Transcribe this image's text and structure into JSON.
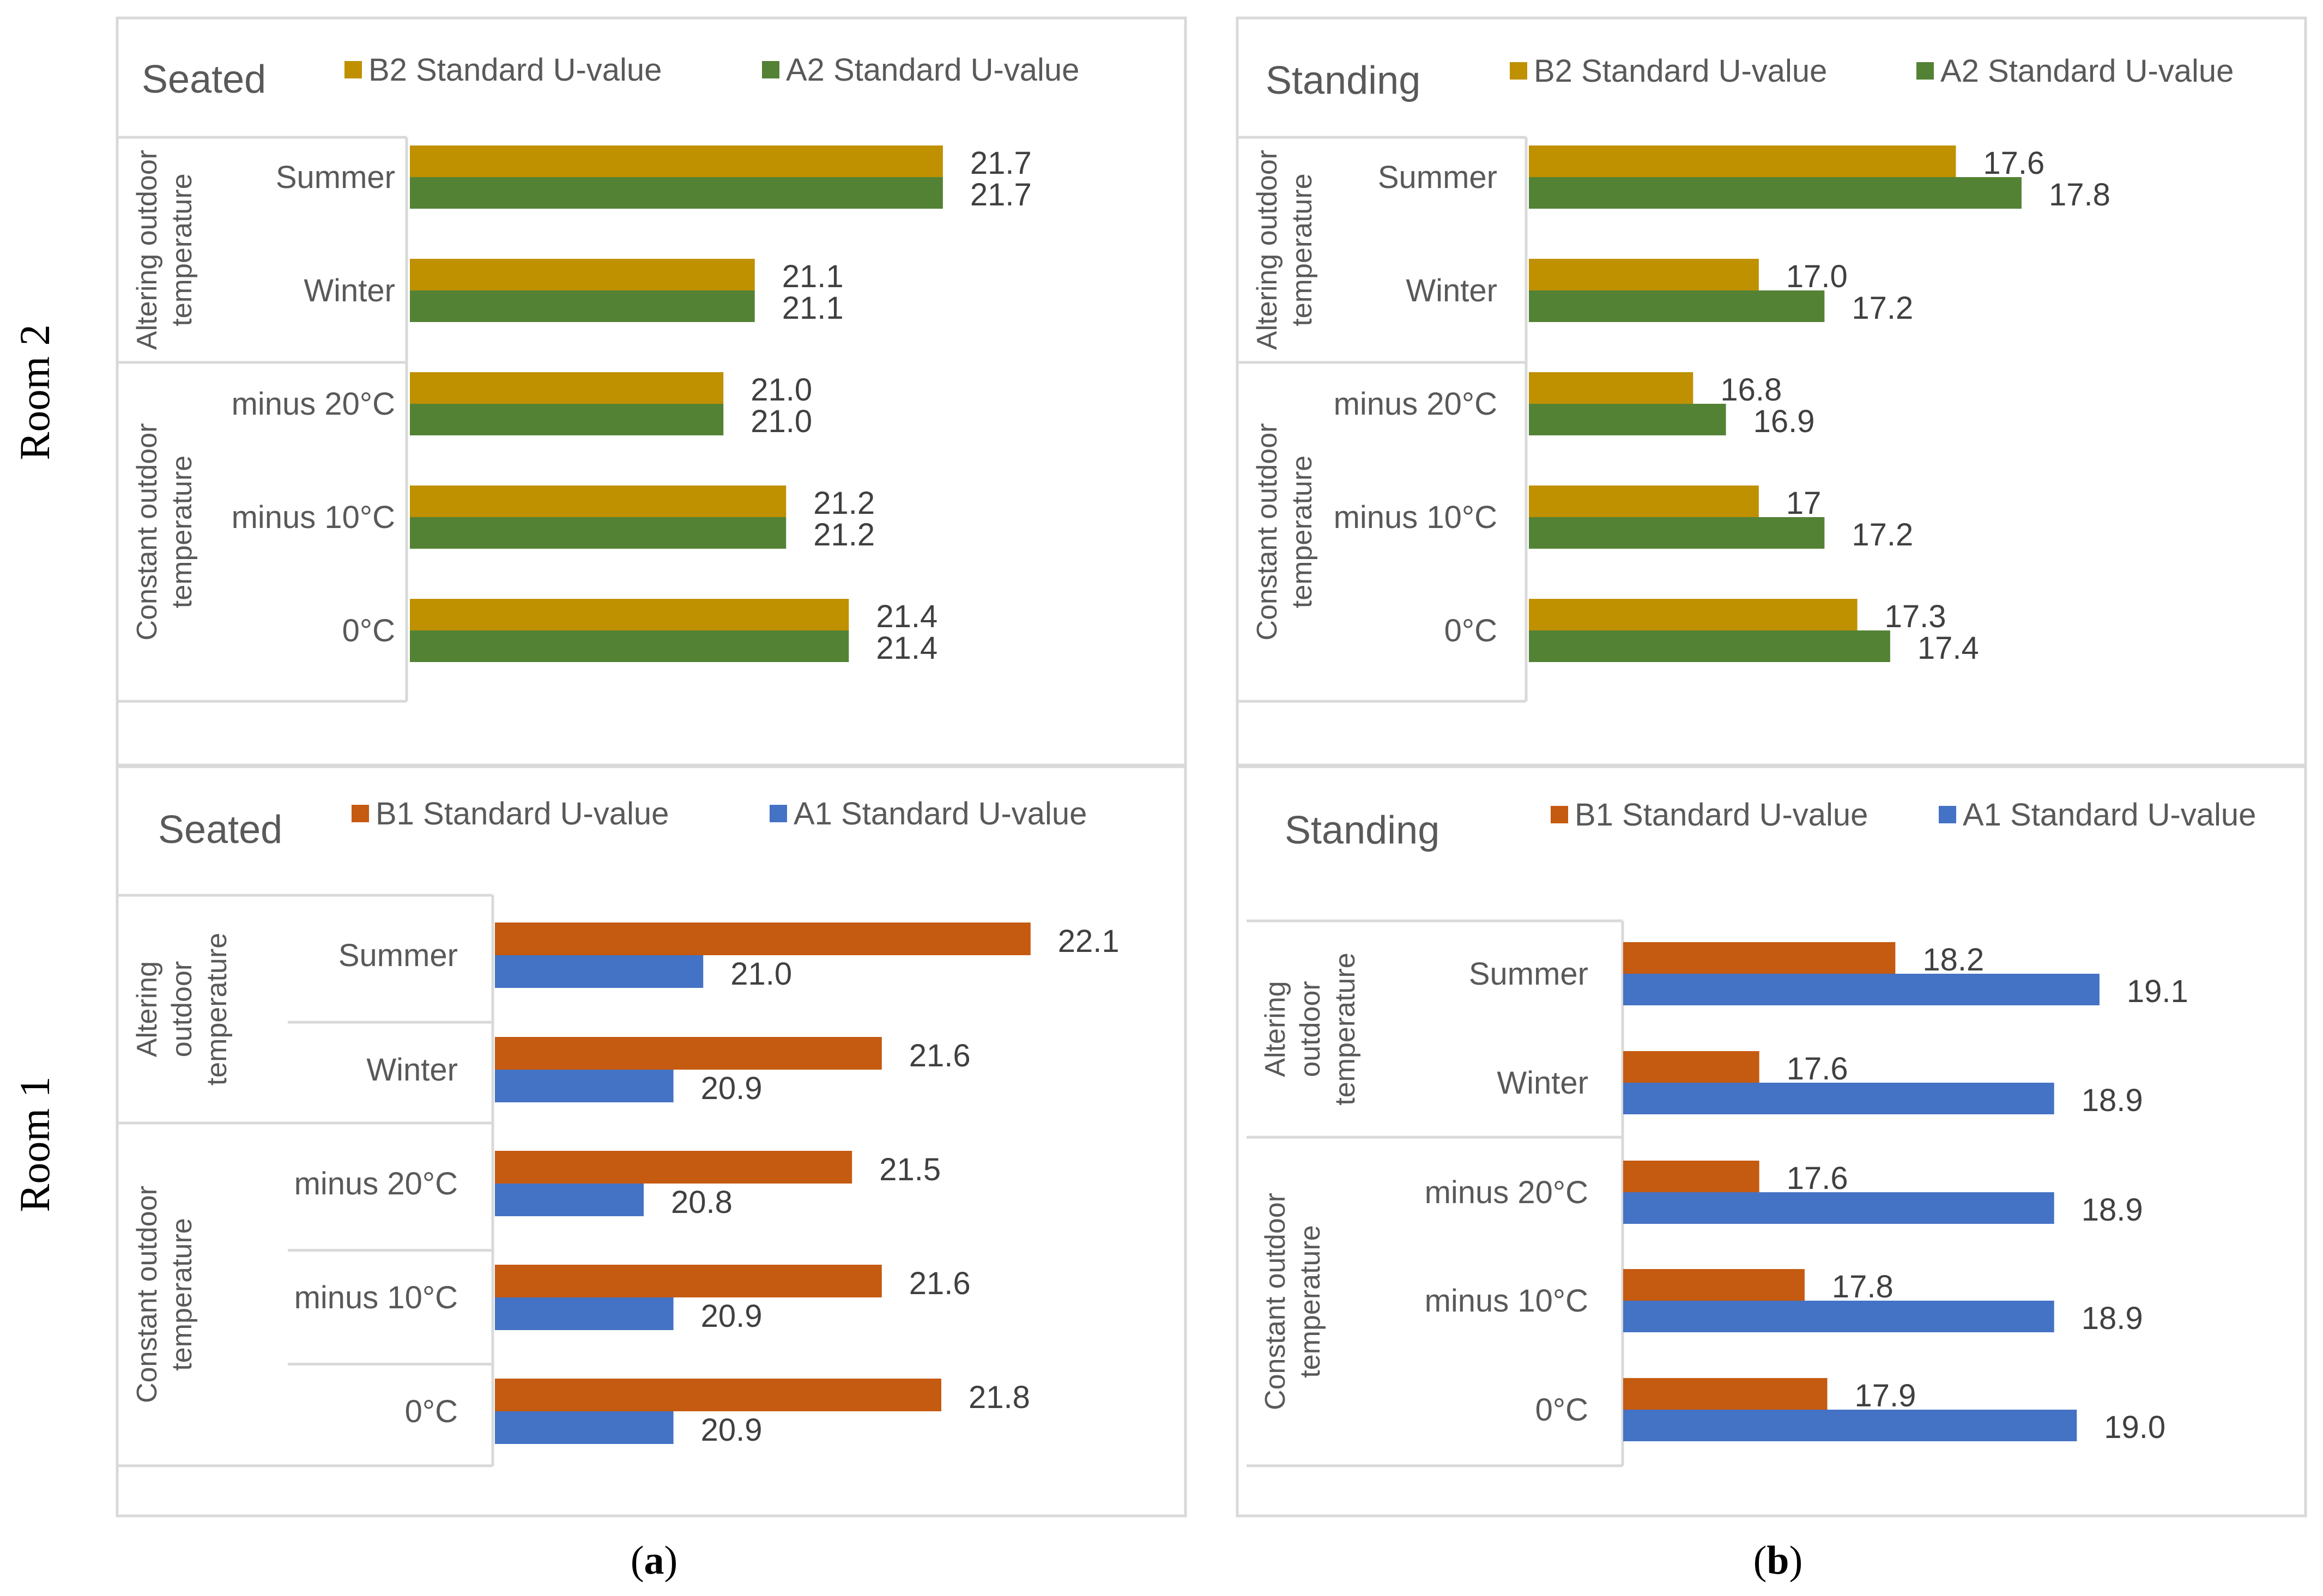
{
  "room_labels": [
    "Room 2",
    "Room 1"
  ],
  "panel_labels": [
    "(a)",
    "(b)"
  ],
  "panel_label_bold": [
    "a",
    "b"
  ],
  "chart_data": [
    {
      "type": "bar",
      "orientation": "horizontal",
      "room": "Room 2",
      "title": "Seated",
      "group_labels": [
        "Altering outdoor temperature",
        "Constant outdoor temperature"
      ],
      "group_label_lines": [
        [
          "Altering outdoor",
          "temperature"
        ],
        [
          "Constant outdoor",
          "temperature"
        ]
      ],
      "categories": [
        "Summer",
        "Winter",
        "minus 20°C",
        "minus 10°C",
        "0°C"
      ],
      "series": [
        {
          "name": "B2 Standard U-value",
          "color": "#bf9000",
          "values": [
            21.7,
            21.1,
            21.0,
            21.2,
            21.4
          ],
          "labels": [
            "21.7",
            "21.1",
            "21.0",
            "21.2",
            "21.4"
          ]
        },
        {
          "name": "A2 Standard U-value",
          "color": "#548235",
          "values": [
            21.7,
            21.1,
            21.0,
            21.2,
            21.4
          ],
          "labels": [
            "21.7",
            "21.1",
            "21.0",
            "21.2",
            "21.4"
          ]
        }
      ],
      "xlim": [
        20.0,
        22.1
      ],
      "grid": false,
      "legend": "top"
    },
    {
      "type": "bar",
      "orientation": "horizontal",
      "room": "Room 2",
      "title": "Standing",
      "group_labels": [
        "Altering outdoor temperature",
        "Constant outdoor temperature"
      ],
      "group_label_lines": [
        [
          "Altering outdoor",
          "temperature"
        ],
        [
          "Constant outdoor",
          "temperature"
        ]
      ],
      "categories": [
        "Summer",
        "Winter",
        "minus 20°C",
        "minus 10°C",
        "0°C"
      ],
      "series": [
        {
          "name": "B2 Standard U-value",
          "color": "#bf9000",
          "values": [
            17.6,
            17.0,
            16.8,
            17.0,
            17.3
          ],
          "labels": [
            "17.6",
            "17.0",
            "16.8",
            "17",
            "17.3"
          ]
        },
        {
          "name": "A2 Standard U-value",
          "color": "#548235",
          "values": [
            17.8,
            17.2,
            16.9,
            17.2,
            17.4
          ],
          "labels": [
            "17.8",
            "17.2",
            "16.9",
            "17.2",
            "17.4"
          ]
        }
      ],
      "xlim": [
        16.3,
        18.2
      ],
      "grid": false,
      "legend": "top"
    },
    {
      "type": "bar",
      "orientation": "horizontal",
      "room": "Room 1",
      "title": "Seated",
      "group_labels": [
        "Altering outdoor temperature",
        "Constant outdoor temperature"
      ],
      "group_label_lines": [
        [
          "Altering",
          "outdoor",
          "temperature"
        ],
        [
          "Constant outdoor",
          "temperature"
        ]
      ],
      "categories": [
        "Summer",
        "Winter",
        "minus 20°C",
        "minus 10°C",
        "0°C"
      ],
      "series": [
        {
          "name": "B1 Standard U-value",
          "color": "#c55a11",
          "values": [
            22.1,
            21.6,
            21.5,
            21.6,
            21.8
          ],
          "labels": [
            "22.1",
            "21.6",
            "21.5",
            "21.6",
            "21.8"
          ]
        },
        {
          "name": "A1 Standard U-value",
          "color": "#4472c4",
          "values": [
            21.0,
            20.9,
            20.8,
            20.9,
            20.9
          ],
          "labels": [
            "21.0",
            "20.9",
            "20.8",
            "20.9",
            "20.9"
          ]
        }
      ],
      "xlim": [
        20.3,
        22.3
      ],
      "grid": false,
      "legend": "top"
    },
    {
      "type": "bar",
      "orientation": "horizontal",
      "room": "Room 1",
      "title": "Standing",
      "group_labels": [
        "Altering outdoor temperature",
        "Constant outdoor temperature"
      ],
      "group_label_lines": [
        [
          "Altering",
          "outdoor",
          "temperature"
        ],
        [
          "Constant outdoor",
          "temperature"
        ]
      ],
      "categories": [
        "Summer",
        "Winter",
        "minus 20°C",
        "minus 10°C",
        "0°C"
      ],
      "series": [
        {
          "name": "B1 Standard U-value",
          "color": "#c55a11",
          "values": [
            18.2,
            17.6,
            17.6,
            17.8,
            17.9
          ],
          "labels": [
            "18.2",
            "17.6",
            "17.6",
            "17.8",
            "17.9"
          ]
        },
        {
          "name": "A1 Standard U-value",
          "color": "#4472c4",
          "values": [
            19.1,
            18.9,
            18.9,
            18.9,
            19.0
          ],
          "labels": [
            "19.1",
            "18.9",
            "18.9",
            "18.9",
            "19.0"
          ]
        }
      ],
      "xlim": [
        17.0,
        19.6
      ],
      "grid": false,
      "legend": "top"
    }
  ]
}
